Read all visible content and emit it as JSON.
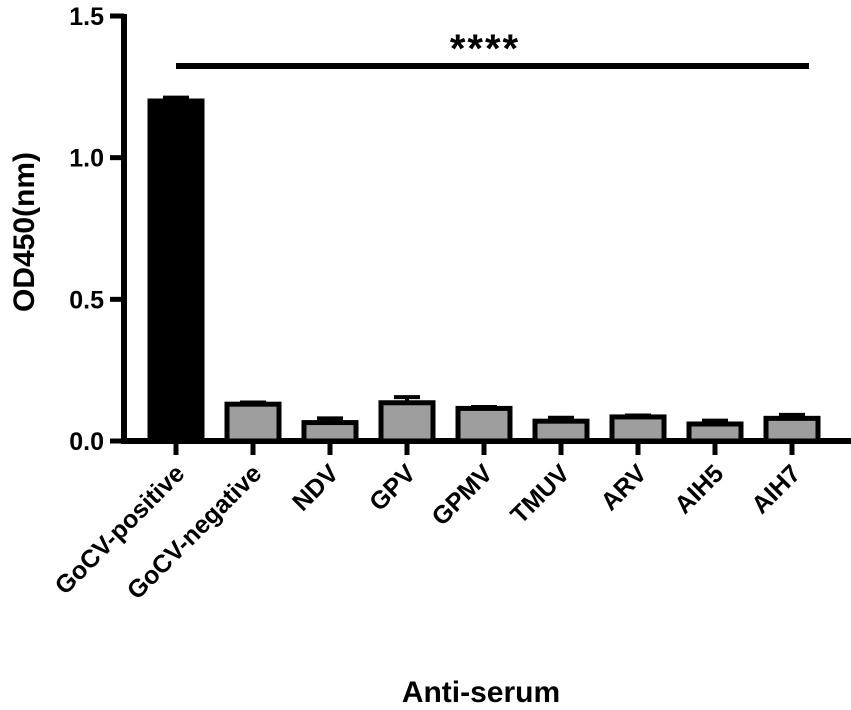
{
  "chart_data": {
    "type": "bar",
    "xlabel": "Anti-serum",
    "ylabel": "OD450(nm)",
    "ylim": [
      0,
      1.5
    ],
    "yticks": [
      "0.0",
      "0.5",
      "1.0",
      "1.5"
    ],
    "categories": [
      "GoCV-positive",
      "GoCV-negative",
      "NDV",
      "GPV",
      "GPMV",
      "TMUV",
      "ARV",
      "AIH5",
      "AIH7"
    ],
    "values": [
      1.2,
      0.13,
      0.065,
      0.135,
      0.115,
      0.07,
      0.085,
      0.06,
      0.08
    ],
    "errors": [
      0.012,
      0.006,
      0.015,
      0.02,
      0.005,
      0.012,
      0.005,
      0.012,
      0.012
    ],
    "bar_colors": [
      "#000000",
      "#9e9e9e",
      "#9e9e9e",
      "#9e9e9e",
      "#9e9e9e",
      "#9e9e9e",
      "#9e9e9e",
      "#9e9e9e",
      "#9e9e9e"
    ],
    "significance": {
      "label": "****",
      "from": "GoCV-positive",
      "to": "AIH7"
    }
  }
}
